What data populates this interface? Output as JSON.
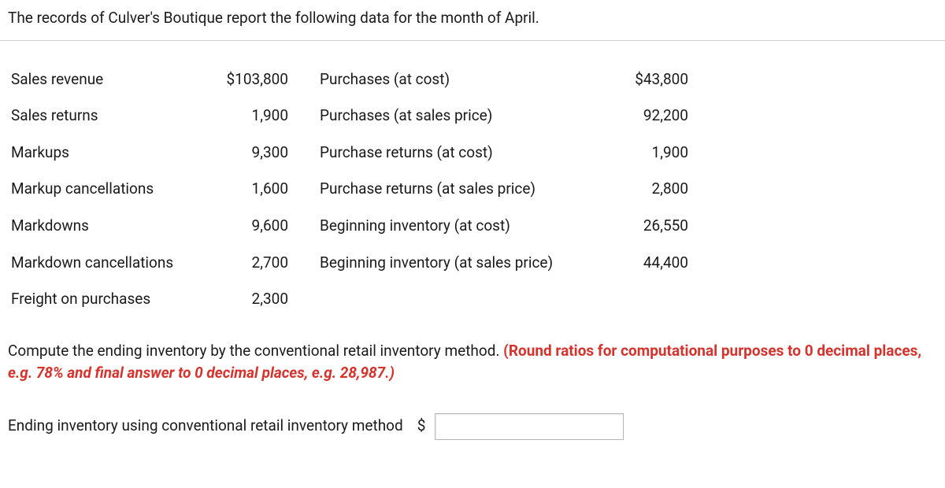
{
  "intro": "The records of Culver's Boutique report the following data for the month of April.",
  "rows": {
    "r0": {
      "l1": "Sales revenue",
      "v1": "$103,800",
      "l2": "Purchases (at cost)",
      "v2": "$43,800"
    },
    "r1": {
      "l1": "Sales returns",
      "v1": "1,900",
      "l2": "Purchases (at sales price)",
      "v2": "92,200"
    },
    "r2": {
      "l1": "Markups",
      "v1": "9,300",
      "l2": "Purchase returns (at cost)",
      "v2": "1,900"
    },
    "r3": {
      "l1": "Markup cancellations",
      "v1": "1,600",
      "l2": "Purchase returns (at sales price)",
      "v2": "2,800"
    },
    "r4": {
      "l1": "Markdowns",
      "v1": "9,600",
      "l2": "Beginning inventory (at cost)",
      "v2": "26,550"
    },
    "r5": {
      "l1": "Markdown cancellations",
      "v1": "2,700",
      "l2": "Beginning inventory (at sales price)",
      "v2": "44,400"
    },
    "r6": {
      "l1": "Freight on purchases",
      "v1": "2,300",
      "l2": "",
      "v2": ""
    }
  },
  "instruction": {
    "black": "Compute the ending inventory by the conventional retail inventory method. ",
    "red1": "(Round ratios for computational purposes to 0 decimal places, ",
    "red2": "e.g. 78% and final answer to 0 decimal places, e.g. 28,987.)"
  },
  "answer": {
    "label": "Ending inventory using conventional retail inventory method",
    "currency": "$",
    "value": ""
  }
}
